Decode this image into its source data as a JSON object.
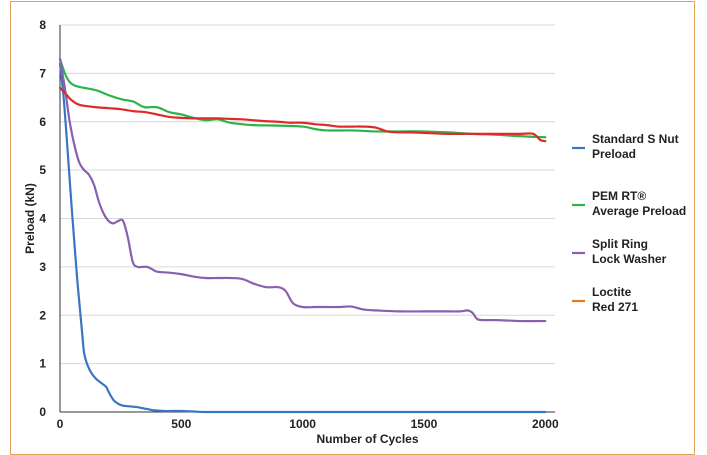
{
  "colors": {
    "frame_border": "#e3a35a",
    "axis": "#333333",
    "grid": "#d9d9d9"
  },
  "chart_data": {
    "type": "line",
    "title": "",
    "xlabel": "Number of Cycles",
    "ylabel": "Preload (kN)",
    "xlim": [
      0,
      2040
    ],
    "ylim": [
      0,
      8
    ],
    "xticks": [
      0,
      500,
      1000,
      1500,
      2000
    ],
    "yticks": [
      0,
      1,
      2,
      3,
      4,
      5,
      6,
      7,
      8
    ],
    "grid": "horizontal",
    "legend_position": "right",
    "series": [
      {
        "name": "Standard S Nut Preload",
        "legend_lines": [
          "Standard S Nut",
          "Preload"
        ],
        "color": "#3a75c4",
        "x": [
          0,
          15,
          30,
          50,
          70,
          90,
          100,
          115,
          130,
          150,
          170,
          190,
          200,
          220,
          240,
          260,
          280,
          300,
          320,
          340,
          360,
          380,
          400,
          430,
          460,
          500,
          550,
          600,
          700,
          800,
          1000,
          1500,
          2000
        ],
        "y": [
          7.2,
          6.5,
          5.5,
          4.1,
          2.8,
          1.7,
          1.2,
          0.95,
          0.8,
          0.68,
          0.6,
          0.52,
          0.42,
          0.25,
          0.17,
          0.13,
          0.12,
          0.11,
          0.1,
          0.08,
          0.06,
          0.04,
          0.03,
          0.02,
          0.02,
          0.02,
          0.01,
          0.0,
          0.0,
          0.0,
          0.0,
          0.0,
          0.0
        ]
      },
      {
        "name": "PEM RT® Average Preload",
        "legend_lines": [
          "PEM RT®",
          "Average Preload"
        ],
        "color": "#2eb34a",
        "x": [
          0,
          20,
          40,
          60,
          80,
          100,
          150,
          200,
          250,
          300,
          320,
          350,
          400,
          450,
          500,
          550,
          600,
          650,
          700,
          750,
          800,
          900,
          1000,
          1050,
          1100,
          1200,
          1300,
          1400,
          1500,
          1600,
          1700,
          1800,
          1900,
          2000
        ],
        "y": [
          7.3,
          7.0,
          6.82,
          6.75,
          6.72,
          6.7,
          6.65,
          6.55,
          6.47,
          6.42,
          6.37,
          6.3,
          6.3,
          6.2,
          6.15,
          6.08,
          6.03,
          6.05,
          5.98,
          5.95,
          5.93,
          5.92,
          5.9,
          5.85,
          5.82,
          5.82,
          5.8,
          5.8,
          5.8,
          5.78,
          5.75,
          5.73,
          5.7,
          5.68
        ]
      },
      {
        "name": "Split Ring Lock Washer",
        "legend_lines": [
          "Split Ring",
          "Lock Washer"
        ],
        "color": "#8a5fb0",
        "x": [
          0,
          20,
          40,
          60,
          80,
          100,
          120,
          140,
          160,
          180,
          200,
          220,
          240,
          260,
          280,
          300,
          320,
          340,
          360,
          380,
          400,
          450,
          500,
          550,
          600,
          650,
          700,
          750,
          800,
          850,
          900,
          930,
          960,
          1000,
          1050,
          1100,
          1150,
          1200,
          1250,
          1300,
          1400,
          1500,
          1600,
          1650,
          1680,
          1700,
          1720,
          1750,
          1800,
          1900,
          2000
        ],
        "y": [
          7.3,
          6.7,
          6.0,
          5.5,
          5.15,
          5.0,
          4.9,
          4.7,
          4.35,
          4.1,
          3.95,
          3.9,
          3.95,
          3.95,
          3.6,
          3.1,
          3.0,
          3.0,
          3.0,
          2.95,
          2.9,
          2.88,
          2.85,
          2.8,
          2.77,
          2.77,
          2.77,
          2.75,
          2.65,
          2.58,
          2.58,
          2.5,
          2.25,
          2.17,
          2.17,
          2.17,
          2.17,
          2.18,
          2.12,
          2.1,
          2.08,
          2.08,
          2.08,
          2.08,
          2.1,
          2.05,
          1.92,
          1.9,
          1.9,
          1.88,
          1.88
        ]
      },
      {
        "name": "Loctite Red 271",
        "legend_lines": [
          "Loctite",
          "Red 271"
        ],
        "color": "#e87a1e",
        "x": [],
        "y": []
      },
      {
        "name": "",
        "legend_lines": [],
        "color": "#e02a2a",
        "x": [
          0,
          20,
          40,
          60,
          80,
          100,
          150,
          200,
          250,
          300,
          350,
          400,
          450,
          500,
          550,
          600,
          650,
          700,
          750,
          800,
          850,
          900,
          950,
          1000,
          1050,
          1100,
          1150,
          1200,
          1250,
          1300,
          1350,
          1400,
          1450,
          1500,
          1600,
          1700,
          1800,
          1850,
          1900,
          1950,
          1980,
          2000
        ],
        "y": [
          6.7,
          6.6,
          6.48,
          6.4,
          6.35,
          6.33,
          6.3,
          6.28,
          6.26,
          6.22,
          6.2,
          6.15,
          6.1,
          6.08,
          6.07,
          6.07,
          6.07,
          6.06,
          6.05,
          6.03,
          6.01,
          6.0,
          5.98,
          5.98,
          5.95,
          5.93,
          5.9,
          5.9,
          5.9,
          5.88,
          5.8,
          5.78,
          5.78,
          5.77,
          5.75,
          5.75,
          5.75,
          5.75,
          5.75,
          5.75,
          5.62,
          5.6
        ]
      }
    ]
  }
}
